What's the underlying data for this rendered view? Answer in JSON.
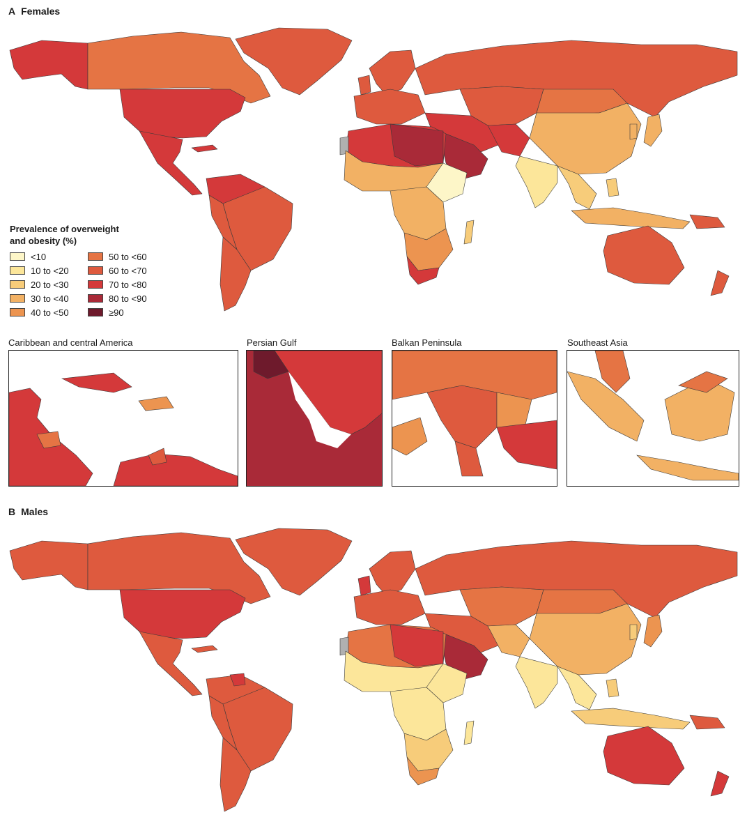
{
  "panel_a": {
    "letter": "A",
    "title": "Females"
  },
  "panel_b": {
    "letter": "B",
    "title": "Males"
  },
  "legend": {
    "title_line1": "Prevalence of overweight",
    "title_line2": "and obesity (%)",
    "items": [
      {
        "label": "<10",
        "color": "#fdf6c8"
      },
      {
        "label": "10 to <20",
        "color": "#fce69a"
      },
      {
        "label": "20 to <30",
        "color": "#f7cc7a"
      },
      {
        "label": "30 to <40",
        "color": "#f2b164"
      },
      {
        "label": "40 to <50",
        "color": "#ec9450"
      },
      {
        "label": "50 to <60",
        "color": "#e57444"
      },
      {
        "label": "60 to <70",
        "color": "#de5a3e"
      },
      {
        "label": "70 to <80",
        "color": "#d4393a"
      },
      {
        "label": "80 to <90",
        "color": "#a92a38"
      },
      {
        "label": "≥90",
        "color": "#6e1a2c"
      }
    ]
  },
  "insets": [
    {
      "label": "Caribbean and central America"
    },
    {
      "label": "Persian Gulf"
    },
    {
      "label": "Balkan Peninsula"
    },
    {
      "label": "Southeast Asia"
    }
  ],
  "colors": {
    "no_data": "#b0b0b0",
    "border": "#3a3a3a",
    "background": "#ffffff"
  }
}
